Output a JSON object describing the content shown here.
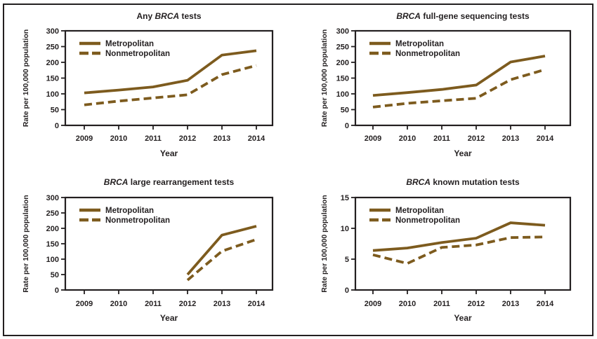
{
  "figure": {
    "background": "#ffffff",
    "border_color": "#231f20",
    "line_color": "#7d5b1e",
    "text_color": "#231f20"
  },
  "chart_data": [
    {
      "type": "line",
      "title": "Any BRCA tests",
      "title_parts": [
        {
          "text": "Any ",
          "italic": false
        },
        {
          "text": "BRCA",
          "italic": true
        },
        {
          "text": " tests",
          "italic": false
        }
      ],
      "xlabel": "Year",
      "ylabel": "Rate per 100,000 population",
      "x": [
        2009,
        2010,
        2011,
        2012,
        2013,
        2014
      ],
      "ylim": [
        0,
        300
      ],
      "yticks": [
        0,
        50,
        100,
        150,
        200,
        250,
        300
      ],
      "grid": false,
      "legend_position": "top-left",
      "series": [
        {
          "name": "Metropolitan",
          "style": "solid",
          "values": [
            103,
            112,
            122,
            143,
            223,
            237
          ]
        },
        {
          "name": "Nonmetropolitan",
          "style": "dashed",
          "values": [
            65,
            77,
            87,
            97,
            161,
            190
          ]
        }
      ]
    },
    {
      "type": "line",
      "title": "BRCA full-gene sequencing tests",
      "title_parts": [
        {
          "text": "BRCA",
          "italic": true
        },
        {
          "text": " full-gene sequencing tests",
          "italic": false
        }
      ],
      "xlabel": "Year",
      "ylabel": "Rate per 100,000 population",
      "x": [
        2009,
        2010,
        2011,
        2012,
        2013,
        2014
      ],
      "ylim": [
        0,
        300
      ],
      "yticks": [
        0,
        50,
        100,
        150,
        200,
        250,
        300
      ],
      "grid": false,
      "legend_position": "top-left",
      "series": [
        {
          "name": "Metropolitan",
          "style": "solid",
          "values": [
            95,
            104,
            114,
            128,
            201,
            220
          ]
        },
        {
          "name": "Nonmetropolitan",
          "style": "dashed",
          "values": [
            58,
            70,
            78,
            86,
            145,
            177
          ]
        }
      ]
    },
    {
      "type": "line",
      "title": "BRCA large rearrangement tests",
      "title_parts": [
        {
          "text": "BRCA",
          "italic": true
        },
        {
          "text": " large rearrangement tests",
          "italic": false
        }
      ],
      "xlabel": "Year",
      "ylabel": "Rate per 100,000 population",
      "x": [
        2009,
        2010,
        2011,
        2012,
        2013,
        2014
      ],
      "ylim": [
        0,
        300
      ],
      "yticks": [
        0,
        50,
        100,
        150,
        200,
        250,
        300
      ],
      "grid": false,
      "legend_position": "top-left",
      "series": [
        {
          "name": "Metropolitan",
          "style": "solid",
          "values": [
            null,
            null,
            null,
            50,
            178,
            207
          ]
        },
        {
          "name": "Nonmetropolitan",
          "style": "dashed",
          "values": [
            null,
            null,
            null,
            32,
            126,
            164
          ]
        }
      ]
    },
    {
      "type": "line",
      "title": "BRCA known mutation tests",
      "title_parts": [
        {
          "text": "BRCA",
          "italic": true
        },
        {
          "text": " known mutation tests",
          "italic": false
        }
      ],
      "xlabel": "Year",
      "ylabel": "Rate per 100,000 population",
      "x": [
        2009,
        2010,
        2011,
        2012,
        2013,
        2014
      ],
      "ylim": [
        0,
        15
      ],
      "yticks": [
        0,
        5,
        10,
        15
      ],
      "grid": false,
      "legend_position": "top-left",
      "series": [
        {
          "name": "Metropolitan",
          "style": "solid",
          "values": [
            6.4,
            6.8,
            7.7,
            8.4,
            10.9,
            10.5
          ]
        },
        {
          "name": "Nonmetropolitan",
          "style": "dashed",
          "values": [
            5.7,
            4.3,
            6.9,
            7.3,
            8.5,
            8.6
          ]
        }
      ]
    }
  ]
}
